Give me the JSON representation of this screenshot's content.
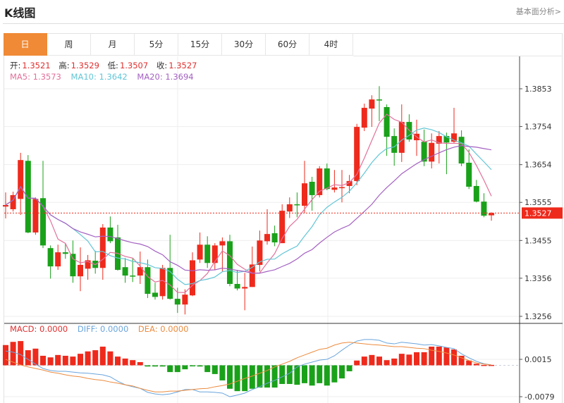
{
  "header": {
    "title": "K线图",
    "link": "基本面分析>"
  },
  "tabs": [
    "日",
    "周",
    "月",
    "5分",
    "15分",
    "30分",
    "60分",
    "4时"
  ],
  "active_tab": 0,
  "ohlc_info": {
    "open_label": "开:",
    "open": "1.3521",
    "high_label": "高:",
    "high": "1.3529",
    "low_label": "低:",
    "low": "1.3507",
    "close_label": "收:",
    "close": "1.3527"
  },
  "ma_info": {
    "ma5": "MA5: 1.3573",
    "ma10": "MA10: 1.3642",
    "ma20": "MA20: 1.3694"
  },
  "macd_info": {
    "macd": "MACD: 0.0000",
    "diff": "DIFF: 0.0000",
    "dea": "DEA: 0.0000"
  },
  "colors": {
    "up": "#ee2a1c",
    "down": "#1aa11a",
    "ma5": "#e2719b",
    "ma10": "#62c6d6",
    "ma20": "#a461c2",
    "diff": "#6aa5dc",
    "dea": "#ec8b3e",
    "accent": "#f08a36"
  },
  "chart_data": [
    {
      "type": "candlestick",
      "title": "K线图",
      "y_ticks": [
        "1.3853",
        "1.3754",
        "1.3654",
        "1.3555",
        "1.3455",
        "1.3356",
        "1.3256"
      ],
      "ylim": [
        1.3256,
        1.3853
      ],
      "last_price": "1.3527",
      "ma_periods": [
        5,
        10,
        20
      ],
      "candles": [
        [
          1.3544,
          1.3548,
          1.3581,
          1.3513
        ],
        [
          1.3537,
          1.3574,
          1.3583,
          1.3531
        ],
        [
          1.3564,
          1.3666,
          1.3685,
          1.3522
        ],
        [
          1.3664,
          1.3476,
          1.3679,
          1.3474
        ],
        [
          1.3476,
          1.3564,
          1.3568,
          1.347
        ],
        [
          1.3566,
          1.3442,
          1.3664,
          1.3435
        ],
        [
          1.3435,
          1.3387,
          1.3442,
          1.3355
        ],
        [
          1.3387,
          1.3424,
          1.3444,
          1.3378
        ],
        [
          1.3424,
          1.342,
          1.3446,
          1.3407
        ],
        [
          1.342,
          1.3361,
          1.3455,
          1.3344
        ],
        [
          1.3361,
          1.3391,
          1.3437,
          1.3322
        ],
        [
          1.3381,
          1.3403,
          1.3417,
          1.3352
        ],
        [
          1.3402,
          1.3383,
          1.3428,
          1.3368
        ],
        [
          1.3383,
          1.3489,
          1.3498,
          1.3352
        ],
        [
          1.3489,
          1.3453,
          1.3518,
          1.3448
        ],
        [
          1.3463,
          1.3378,
          1.3496,
          1.3376
        ],
        [
          1.3385,
          1.3363,
          1.3409,
          1.3344
        ],
        [
          1.3363,
          1.3361,
          1.3409,
          1.3346
        ],
        [
          1.3363,
          1.3385,
          1.3426,
          1.3341
        ],
        [
          1.3385,
          1.3315,
          1.3405,
          1.3304
        ],
        [
          1.3318,
          1.3307,
          1.3344,
          1.33
        ],
        [
          1.3309,
          1.3383,
          1.3391,
          1.33
        ],
        [
          1.3383,
          1.3302,
          1.347,
          1.33
        ],
        [
          1.3302,
          1.3287,
          1.3331,
          1.3265
        ],
        [
          1.3287,
          1.3313,
          1.3327,
          1.3261
        ],
        [
          1.3311,
          1.3403,
          1.3424,
          1.3309
        ],
        [
          1.3405,
          1.3444,
          1.3476,
          1.3396
        ],
        [
          1.3444,
          1.3396,
          1.3466,
          1.3383
        ],
        [
          1.3396,
          1.3442,
          1.3448,
          1.3378
        ],
        [
          1.3442,
          1.3453,
          1.3463,
          1.3374
        ],
        [
          1.3453,
          1.3341,
          1.347,
          1.3335
        ],
        [
          1.3341,
          1.3329,
          1.3378,
          1.3324
        ],
        [
          1.3329,
          1.3333,
          1.337,
          1.3272
        ],
        [
          1.3333,
          1.3392,
          1.3439,
          1.3333
        ],
        [
          1.3391,
          1.3455,
          1.3481,
          1.3374
        ],
        [
          1.3453,
          1.3472,
          1.3537,
          1.3444
        ],
        [
          1.3474,
          1.345,
          1.3494,
          1.344
        ],
        [
          1.3448,
          1.3533,
          1.355,
          1.3448
        ],
        [
          1.3531,
          1.355,
          1.3568,
          1.3514
        ],
        [
          1.355,
          1.3548,
          1.3581,
          1.3516
        ],
        [
          1.3546,
          1.3605,
          1.3664,
          1.3527
        ],
        [
          1.3609,
          1.3574,
          1.3622,
          1.3533
        ],
        [
          1.3574,
          1.3644,
          1.365,
          1.3568
        ],
        [
          1.3644,
          1.359,
          1.3657,
          1.3587
        ],
        [
          1.3588,
          1.3594,
          1.364,
          1.3581
        ],
        [
          1.3594,
          1.3595,
          1.364,
          1.3555
        ],
        [
          1.3598,
          1.3611,
          1.3627,
          1.3579
        ],
        [
          1.3611,
          1.3753,
          1.3761,
          1.36
        ],
        [
          1.3751,
          1.3803,
          1.3814,
          1.3742
        ],
        [
          1.3801,
          1.3825,
          1.3836,
          1.3753
        ],
        [
          1.3825,
          1.3823,
          1.386,
          1.3768
        ],
        [
          1.3805,
          1.3727,
          1.3812,
          1.3677
        ],
        [
          1.3729,
          1.3685,
          1.3749,
          1.3651
        ],
        [
          1.3685,
          1.3766,
          1.3812,
          1.3661
        ],
        [
          1.3766,
          1.372,
          1.3786,
          1.3714
        ],
        [
          1.3718,
          1.3735,
          1.3772,
          1.3677
        ],
        [
          1.3714,
          1.3662,
          1.3746,
          1.365
        ],
        [
          1.3662,
          1.3711,
          1.3736,
          1.3644
        ],
        [
          1.3709,
          1.3729,
          1.3742,
          1.3657
        ],
        [
          1.3729,
          1.3712,
          1.3738,
          1.3629
        ],
        [
          1.3714,
          1.3736,
          1.3803,
          1.3711
        ],
        [
          1.3727,
          1.3657,
          1.3744,
          1.365
        ],
        [
          1.3659,
          1.3596,
          1.3694,
          1.359
        ],
        [
          1.3598,
          1.3557,
          1.3614,
          1.3555
        ],
        [
          1.3557,
          1.352,
          1.3579,
          1.3516
        ],
        [
          1.3521,
          1.3527,
          1.3529,
          1.3507
        ]
      ]
    },
    {
      "type": "bar+line",
      "title": "MACD",
      "y_ticks": [
        "0.0015",
        "-0.0079"
      ],
      "macd": [
        0.0051,
        0.0059,
        0.0061,
        0.0038,
        0.0042,
        0.0024,
        0.002,
        0.0026,
        0.0024,
        0.0022,
        0.0029,
        0.0035,
        0.0038,
        0.0047,
        0.0035,
        0.0022,
        0.0017,
        0.0013,
        0.0008,
        -0.0003,
        -0.0003,
        -0.0003,
        -0.0017,
        -0.0017,
        -0.001,
        -0.0001,
        -0.0003,
        -0.0017,
        -0.0022,
        -0.0038,
        -0.0059,
        -0.0065,
        -0.0065,
        -0.0059,
        -0.0056,
        -0.0056,
        -0.0056,
        -0.0047,
        -0.0047,
        -0.0049,
        -0.0045,
        -0.0051,
        -0.0045,
        -0.0051,
        -0.0043,
        -0.0033,
        -0.0015,
        0.0012,
        0.0022,
        0.0026,
        0.0022,
        0.0013,
        0.0017,
        0.0029,
        0.0027,
        0.0033,
        0.0033,
        0.0047,
        0.0047,
        0.0045,
        0.004,
        0.0024,
        0.0012,
        0.0004,
        0.0001,
        0.0001
      ],
      "diff": [
        0.0036,
        0.0033,
        0.0027,
        0.0015,
        0.0003,
        -0.0008,
        -0.0013,
        -0.0015,
        -0.0015,
        -0.0017,
        -0.0019,
        -0.002,
        -0.0022,
        -0.0024,
        -0.0029,
        -0.004,
        -0.0049,
        -0.0054,
        -0.0058,
        -0.0068,
        -0.0072,
        -0.0074,
        -0.0072,
        -0.0067,
        -0.0061,
        -0.0061,
        -0.0067,
        -0.0067,
        -0.0068,
        -0.007,
        -0.0079,
        -0.0075,
        -0.007,
        -0.0061,
        -0.0054,
        -0.0045,
        -0.0038,
        -0.0029,
        -0.002,
        -0.0004,
        0.0003,
        0.0008,
        0.0013,
        0.0015,
        0.0024,
        0.0038,
        0.0051,
        0.0061,
        0.0065,
        0.0065,
        0.0063,
        0.0056,
        0.0054,
        0.0058,
        0.0056,
        0.0054,
        0.0051,
        0.0052,
        0.0049,
        0.0045,
        0.0042,
        0.0029,
        0.0019,
        0.001,
        0.0004,
        0.0001
      ],
      "dea": [
        0.0015,
        0.0008,
        0.0001,
        -0.0004,
        -0.0008,
        -0.0012,
        -0.0017,
        -0.002,
        -0.0024,
        -0.0027,
        -0.0029,
        -0.0033,
        -0.0036,
        -0.0038,
        -0.0042,
        -0.0045,
        -0.0049,
        -0.0052,
        -0.0058,
        -0.0063,
        -0.0067,
        -0.0067,
        -0.0065,
        -0.0065,
        -0.0063,
        -0.0061,
        -0.0059,
        -0.0058,
        -0.0054,
        -0.0051,
        -0.0047,
        -0.004,
        -0.0033,
        -0.0027,
        -0.002,
        -0.0013,
        -0.0004,
        0.0003,
        0.001,
        0.0019,
        0.0026,
        0.0033,
        0.004,
        0.0043,
        0.0051,
        0.0056,
        0.0058,
        0.0056,
        0.0054,
        0.0052,
        0.0051,
        0.0049,
        0.0047,
        0.0047,
        0.0045,
        0.0043,
        0.0042,
        0.0038,
        0.0035,
        0.0031,
        0.0026,
        0.0019,
        0.0012,
        0.0006,
        0.0003,
        0.0001
      ]
    }
  ]
}
